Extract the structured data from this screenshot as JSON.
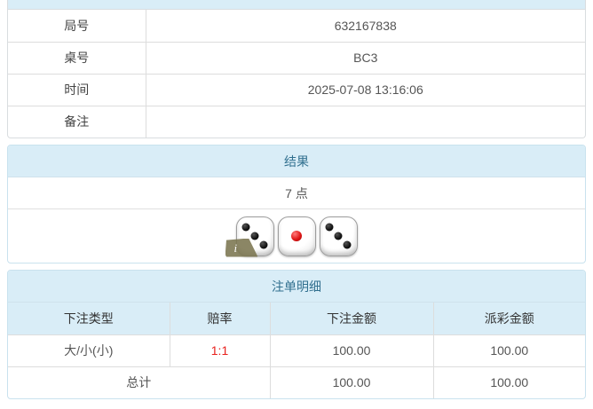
{
  "colors": {
    "panel_heading_bg": "#d9edf7",
    "panel_heading_text": "#31708f",
    "panel_border": "#c9e2ee",
    "table_border": "#dddddd",
    "body_text": "#555555",
    "odds_red": "#e8211d",
    "die_red_dot": "#e01818",
    "info_badge_bg": "#7b7550"
  },
  "game_info": {
    "rows": [
      {
        "label": "局号",
        "value": "632167838"
      },
      {
        "label": "桌号",
        "value": "BC3"
      },
      {
        "label": "时间",
        "value": "2025-07-08 13:16:06"
      },
      {
        "label": "备注",
        "value": ""
      }
    ]
  },
  "result": {
    "title": "结果",
    "points": "7 点",
    "dice": [
      3,
      1,
      3
    ],
    "red_die_index": 1,
    "info_badge": "i"
  },
  "bets": {
    "title": "注单明细",
    "columns": [
      "下注类型",
      "赔率",
      "下注金额",
      "派彩金额"
    ],
    "rows": [
      {
        "bet_type": "大/小(小)",
        "odds": "1:1",
        "bet_amount": "100.00",
        "payout_amount": "100.00"
      }
    ],
    "total": {
      "label": "总计",
      "bet_amount": "100.00",
      "payout_amount": "100.00"
    }
  }
}
